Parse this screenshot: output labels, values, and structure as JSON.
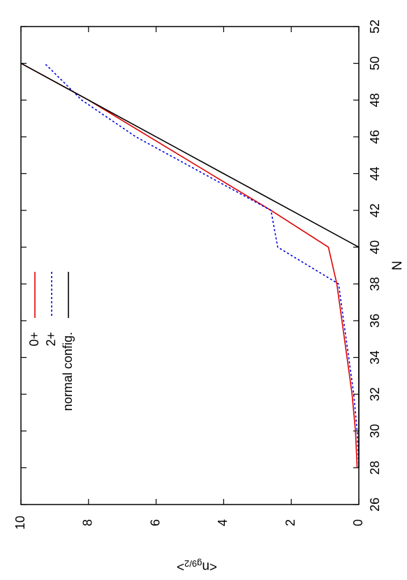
{
  "chart_data": {
    "type": "line",
    "orientation": "rotated-90",
    "xlabel": "N",
    "ylabel": "<n_g9/2>",
    "ylabel_main": "<n",
    "ylabel_sub": "g9/2",
    "ylabel_close": ">",
    "xlim": [
      26,
      52
    ],
    "ylim": [
      0,
      10
    ],
    "xticks": [
      26,
      28,
      30,
      32,
      34,
      36,
      38,
      40,
      42,
      44,
      46,
      48,
      50,
      52
    ],
    "yticks": [
      0,
      2,
      4,
      6,
      8,
      10
    ],
    "grid": false,
    "legend_position": "top-left",
    "series": [
      {
        "name": "0+",
        "color": "#e00000",
        "dash": "solid",
        "x": [
          28,
          30,
          32,
          34,
          36,
          38,
          40,
          42,
          44,
          46,
          48,
          50
        ],
        "y": [
          0.05,
          0.1,
          0.2,
          0.35,
          0.5,
          0.65,
          0.9,
          2.6,
          4.4,
          6.2,
          8.0,
          10.0
        ]
      },
      {
        "name": "2+",
        "color": "#0000e0",
        "dash": "dotted",
        "x": [
          28,
          30,
          32,
          34,
          36,
          38,
          40,
          42,
          44,
          46,
          48,
          50
        ],
        "y": [
          0.0,
          0.05,
          0.15,
          0.3,
          0.45,
          0.6,
          2.4,
          2.6,
          4.6,
          6.6,
          8.2,
          9.3
        ]
      },
      {
        "name": "normal config.",
        "color": "#000000",
        "dash": "solid",
        "x": [
          28,
          30,
          32,
          34,
          36,
          38,
          40,
          42,
          44,
          46,
          48,
          50
        ],
        "y": [
          0.0,
          0.0,
          0.0,
          0.0,
          0.0,
          0.0,
          0.0,
          2.0,
          4.0,
          6.0,
          8.0,
          10.0
        ]
      }
    ]
  }
}
